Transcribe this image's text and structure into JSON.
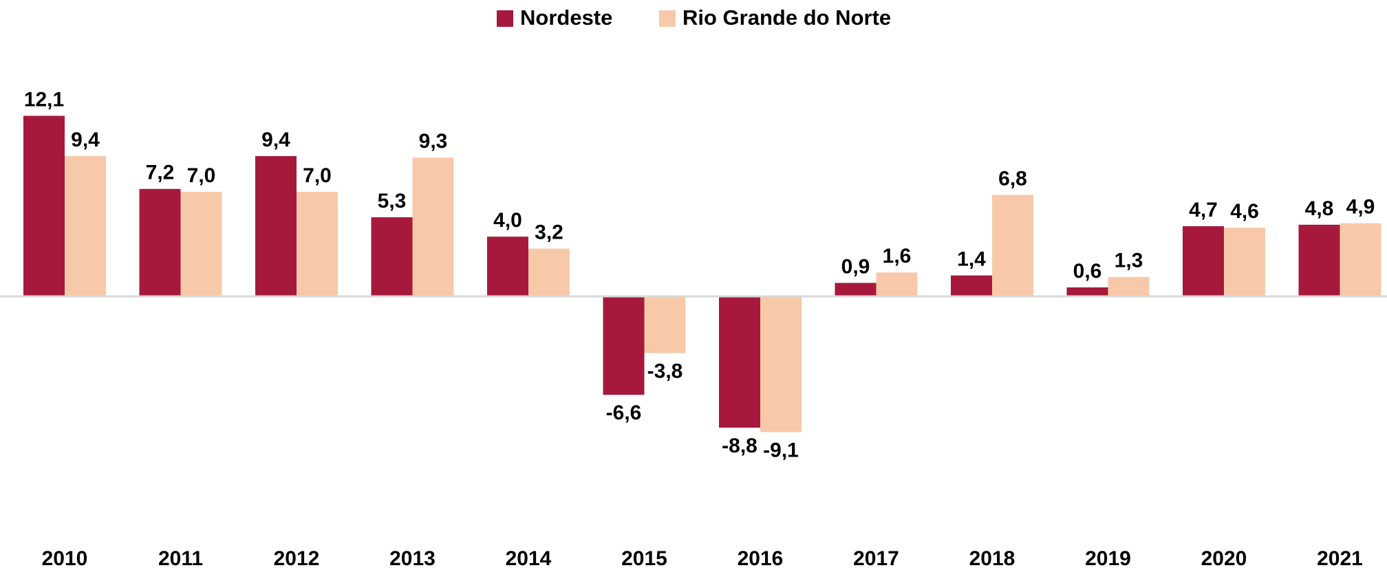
{
  "chart_data": {
    "type": "bar",
    "categories": [
      "2010",
      "2011",
      "2012",
      "2013",
      "2014",
      "2015",
      "2016",
      "2017",
      "2018",
      "2019",
      "2020",
      "2021"
    ],
    "series": [
      {
        "name": "Nordeste",
        "color": "#a6193c",
        "values": [
          12.1,
          7.2,
          9.4,
          5.3,
          4.0,
          -6.6,
          -8.8,
          0.9,
          1.4,
          0.6,
          4.7,
          4.8
        ],
        "value_labels": [
          "12,1",
          "7,2",
          "9,4",
          "5,3",
          "4,0",
          "-6,6",
          "-8,8",
          "0,9",
          "1,4",
          "0,6",
          "4,7",
          "4,8"
        ]
      },
      {
        "name": "Rio Grande do Norte",
        "color": "#f8c9a9",
        "values": [
          9.4,
          7.0,
          7.0,
          9.3,
          3.2,
          -3.8,
          -9.1,
          1.6,
          6.8,
          1.3,
          4.6,
          4.9
        ],
        "value_labels": [
          "9,4",
          "7,0",
          "7,0",
          "9,3",
          "3,2",
          "-3,8",
          "-9,1",
          "1,6",
          "6,8",
          "1,3",
          "4,6",
          "4,9"
        ]
      }
    ],
    "legend": "top"
  }
}
